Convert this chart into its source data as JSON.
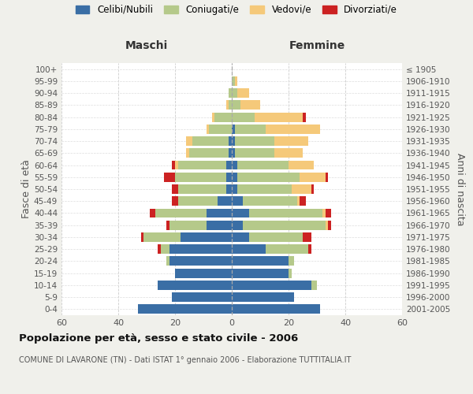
{
  "age_groups": [
    "0-4",
    "5-9",
    "10-14",
    "15-19",
    "20-24",
    "25-29",
    "30-34",
    "35-39",
    "40-44",
    "45-49",
    "50-54",
    "55-59",
    "60-64",
    "65-69",
    "70-74",
    "75-79",
    "80-84",
    "85-89",
    "90-94",
    "95-99",
    "100+"
  ],
  "birth_years": [
    "2001-2005",
    "1996-2000",
    "1991-1995",
    "1986-1990",
    "1981-1985",
    "1976-1980",
    "1971-1975",
    "1966-1970",
    "1961-1965",
    "1956-1960",
    "1951-1955",
    "1946-1950",
    "1941-1945",
    "1936-1940",
    "1931-1935",
    "1926-1930",
    "1921-1925",
    "1916-1920",
    "1911-1915",
    "1906-1910",
    "≤ 1905"
  ],
  "male": {
    "celibi": [
      33,
      21,
      26,
      20,
      22,
      22,
      18,
      9,
      9,
      5,
      2,
      2,
      2,
      1,
      1,
      0,
      0,
      0,
      0,
      0,
      0
    ],
    "coniugati": [
      0,
      0,
      0,
      0,
      1,
      3,
      13,
      13,
      18,
      14,
      17,
      18,
      17,
      14,
      13,
      8,
      6,
      1,
      1,
      0,
      0
    ],
    "vedovi": [
      0,
      0,
      0,
      0,
      0,
      0,
      0,
      0,
      0,
      0,
      0,
      0,
      1,
      1,
      2,
      1,
      1,
      1,
      0,
      0,
      0
    ],
    "divorziati": [
      0,
      0,
      0,
      0,
      0,
      1,
      1,
      1,
      2,
      2,
      2,
      4,
      1,
      0,
      0,
      0,
      0,
      0,
      0,
      0,
      0
    ]
  },
  "female": {
    "nubili": [
      31,
      22,
      28,
      20,
      20,
      12,
      6,
      4,
      6,
      4,
      2,
      2,
      2,
      1,
      1,
      1,
      0,
      0,
      0,
      0,
      0
    ],
    "coniugate": [
      0,
      0,
      2,
      1,
      2,
      15,
      19,
      29,
      26,
      19,
      19,
      22,
      18,
      14,
      14,
      11,
      8,
      3,
      2,
      1,
      0
    ],
    "vedove": [
      0,
      0,
      0,
      0,
      0,
      0,
      0,
      1,
      1,
      1,
      7,
      9,
      9,
      10,
      12,
      19,
      17,
      7,
      4,
      1,
      0
    ],
    "divorziate": [
      0,
      0,
      0,
      0,
      0,
      1,
      3,
      1,
      2,
      2,
      1,
      1,
      0,
      0,
      0,
      0,
      1,
      0,
      0,
      0,
      0
    ]
  },
  "color_celibi": "#3a6ea5",
  "color_coniugati": "#b5c98a",
  "color_vedovi": "#f5c97a",
  "color_divorziati": "#cc2222",
  "xlim": 60,
  "title": "Popolazione per età, sesso e stato civile - 2006",
  "subtitle": "COMUNE DI LAVARONE (TN) - Dati ISTAT 1° gennaio 2006 - Elaborazione TUTTITALIA.IT",
  "ylabel_left": "Fasce di età",
  "ylabel_right": "Anni di nascita",
  "xlabel_left": "Maschi",
  "xlabel_right": "Femmine",
  "bg_color": "#f0f0eb",
  "plot_bg_color": "#ffffff"
}
